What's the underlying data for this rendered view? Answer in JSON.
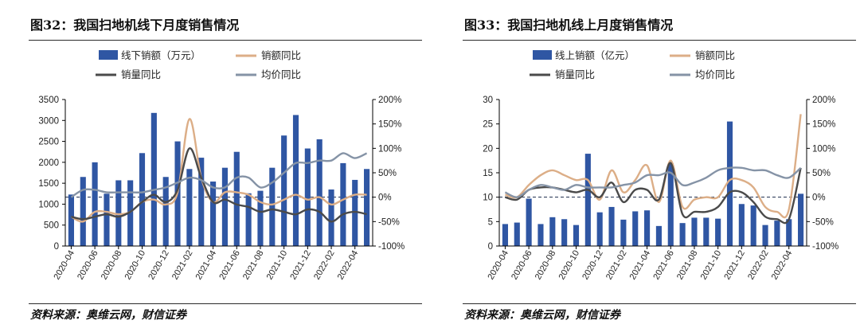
{
  "colors": {
    "bar": "#2f56a3",
    "amount_yoy": "#dcae87",
    "volume_yoy": "#4a4a4a",
    "price_yoy": "#8593a6",
    "axis": "#000000"
  },
  "chart_data": [
    {
      "type": "bar",
      "title": "图32：我国扫地机线下月度销售情况",
      "source": "资料来源：奥维云网，财信证券",
      "categories": [
        "2020-04",
        "2020-05",
        "2020-06",
        "2020-07",
        "2020-08",
        "2020-09",
        "2020-10",
        "2020-11",
        "2020-12",
        "2021-01",
        "2021-02",
        "2021-03",
        "2021-04",
        "2021-05",
        "2021-06",
        "2021-07",
        "2021-08",
        "2021-09",
        "2021-10",
        "2021-11",
        "2021-12",
        "2022-01",
        "2022-02",
        "2022-03",
        "2022-04",
        "2022-05"
      ],
      "xtick_labels": [
        "2020-04",
        "2020-06",
        "2020-08",
        "2020-10",
        "2020-12",
        "2021-02",
        "2021-04",
        "2021-06",
        "2021-08",
        "2021-10",
        "2021-12",
        "2022-02",
        "2022-04"
      ],
      "left_axis": {
        "ylim": [
          0,
          3500
        ],
        "ticks": [
          "0",
          "500",
          "1000",
          "1500",
          "2000",
          "2500",
          "3000",
          "3500"
        ]
      },
      "right_axis": {
        "ylim": [
          -100,
          200
        ],
        "ticks": [
          "-100%",
          "-50%",
          "0%",
          "50%",
          "100%",
          "150%",
          "200%"
        ]
      },
      "legend_position": "top",
      "series": [
        {
          "name": "线下销额（万元）",
          "type": "bar",
          "axis": "left",
          "values": [
            1230,
            1650,
            2000,
            1250,
            1570,
            1570,
            2220,
            3180,
            1650,
            2500,
            1840,
            2110,
            1540,
            1870,
            2250,
            1260,
            1320,
            1870,
            2640,
            3130,
            2330,
            2550,
            1350,
            1980,
            1580,
            1840
          ]
        },
        {
          "name": "销额同比",
          "type": "line",
          "axis": "right",
          "values": [
            -40,
            -50,
            -30,
            -30,
            -35,
            -30,
            -10,
            -5,
            -15,
            10,
            160,
            40,
            -10,
            10,
            10,
            5,
            -10,
            -15,
            -5,
            5,
            -5,
            0,
            -15,
            -5,
            5,
            5
          ]
        },
        {
          "name": "销量同比",
          "type": "line",
          "axis": "right",
          "values": [
            -40,
            -45,
            -40,
            -35,
            -40,
            -30,
            -10,
            5,
            -10,
            15,
            100,
            40,
            -10,
            -5,
            -15,
            -20,
            -30,
            -25,
            -30,
            -35,
            -25,
            -30,
            -50,
            -35,
            -30,
            -35
          ]
        },
        {
          "name": "均价同比",
          "type": "line",
          "axis": "right",
          "values": [
            0,
            15,
            15,
            10,
            10,
            10,
            10,
            15,
            20,
            30,
            40,
            35,
            20,
            20,
            40,
            40,
            20,
            30,
            50,
            70,
            70,
            75,
            75,
            90,
            80,
            90
          ]
        }
      ]
    },
    {
      "type": "bar",
      "title": "图33：我国扫地机线上月度销售情况",
      "source": "资料来源：奥维云网，财信证券",
      "categories": [
        "2020-04",
        "2020-05",
        "2020-06",
        "2020-07",
        "2020-08",
        "2020-09",
        "2020-10",
        "2020-11",
        "2020-12",
        "2021-01",
        "2021-02",
        "2021-03",
        "2021-04",
        "2021-05",
        "2021-06",
        "2021-07",
        "2021-08",
        "2021-09",
        "2021-10",
        "2021-11",
        "2021-12",
        "2022-01",
        "2022-02",
        "2022-03",
        "2022-04",
        "2022-05"
      ],
      "xtick_labels": [
        "2020-04",
        "2020-06",
        "2020-08",
        "2020-10",
        "2020-12",
        "2021-02",
        "2021-04",
        "2021-06",
        "2021-08",
        "2021-10",
        "2021-12",
        "2022-02",
        "2022-04"
      ],
      "left_axis": {
        "ylim": [
          0,
          30
        ],
        "ticks": [
          "0",
          "5",
          "10",
          "15",
          "20",
          "25",
          "30"
        ]
      },
      "right_axis": {
        "ylim": [
          -100,
          200
        ],
        "ticks": [
          "-100%",
          "-50%",
          "0%",
          "50%",
          "100%",
          "150%",
          "200%"
        ]
      },
      "legend_position": "top",
      "series": [
        {
          "name": "线上销额（亿元）",
          "type": "bar",
          "axis": "left",
          "values": [
            4.5,
            4.8,
            9.7,
            4.5,
            5.9,
            5.5,
            4.3,
            18.9,
            6.9,
            8.0,
            5.4,
            7.1,
            7.3,
            4.1,
            16.9,
            4.7,
            5.8,
            5.8,
            5.6,
            25.5,
            8.6,
            8.3,
            4.3,
            5.2,
            5.5,
            10.7
          ]
        },
        {
          "name": "销额同比",
          "type": "line",
          "axis": "right",
          "values": [
            5,
            0,
            25,
            45,
            55,
            45,
            35,
            35,
            -5,
            55,
            10,
            35,
            65,
            -10,
            75,
            -20,
            -5,
            0,
            0,
            35,
            35,
            20,
            -20,
            -30,
            -25,
            170
          ]
        },
        {
          "name": "销量同比",
          "type": "line",
          "axis": "right",
          "values": [
            0,
            -5,
            15,
            20,
            20,
            15,
            10,
            15,
            0,
            30,
            -10,
            15,
            15,
            -5,
            70,
            -35,
            -30,
            -30,
            -20,
            10,
            10,
            -10,
            -40,
            -45,
            -45,
            60
          ]
        },
        {
          "name": "均价同比",
          "type": "line",
          "axis": "right",
          "values": [
            10,
            0,
            15,
            25,
            20,
            15,
            25,
            20,
            20,
            20,
            25,
            30,
            45,
            45,
            50,
            25,
            30,
            40,
            55,
            60,
            60,
            55,
            55,
            45,
            40,
            60
          ]
        }
      ]
    }
  ]
}
